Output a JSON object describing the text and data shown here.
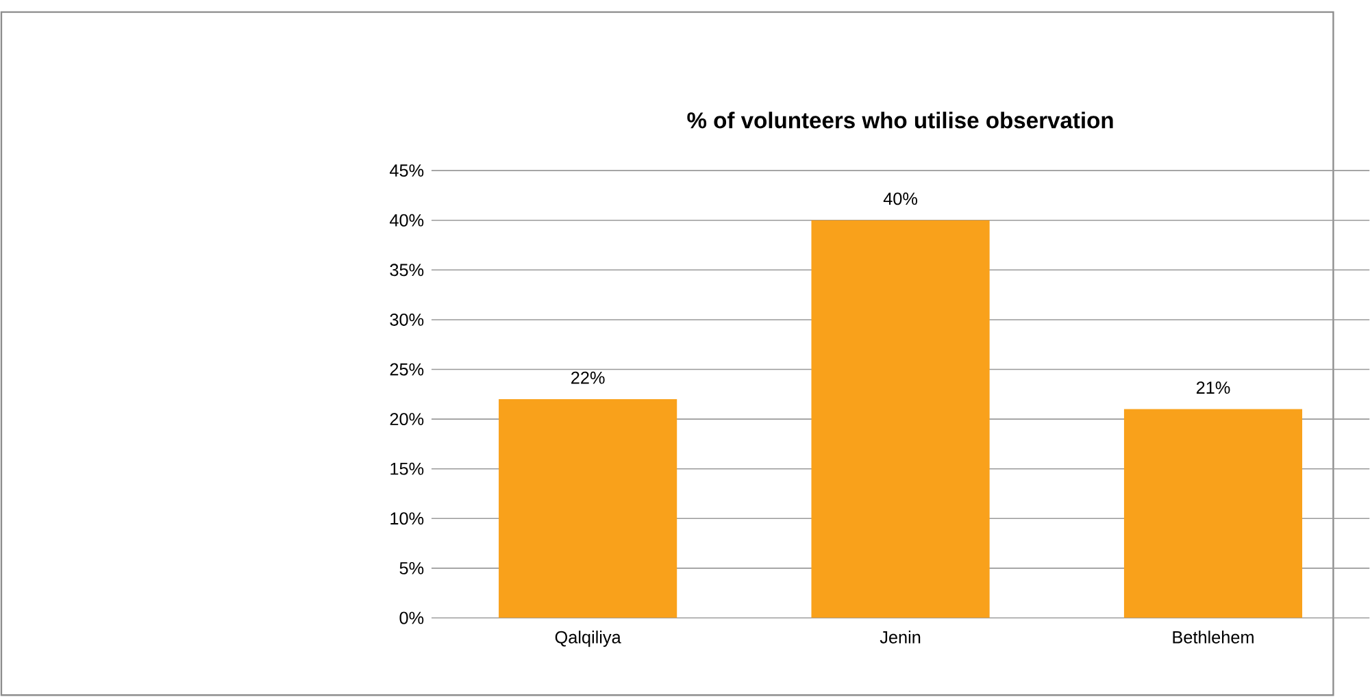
{
  "chart_data": {
    "type": "bar",
    "title": "% of volunteers who utilise observation",
    "categories": [
      "Qalqiliya",
      "Jenin",
      "Bethlehem"
    ],
    "values": [
      22,
      40,
      21
    ],
    "value_labels": [
      "22%",
      "40%",
      "21%"
    ],
    "color": "#f9a11b",
    "ylim": [
      0,
      45
    ],
    "yticks": [
      {
        "value": 0,
        "label": "0%"
      },
      {
        "value": 5,
        "label": "5%"
      },
      {
        "value": 10,
        "label": "10%"
      },
      {
        "value": 15,
        "label": "15%"
      },
      {
        "value": 20,
        "label": "20%"
      },
      {
        "value": 25,
        "label": "25%"
      },
      {
        "value": 30,
        "label": "30%"
      },
      {
        "value": 35,
        "label": "35%"
      },
      {
        "value": 40,
        "label": "40%"
      },
      {
        "value": 45,
        "label": "45%"
      }
    ],
    "grid": "y",
    "legend": false
  }
}
